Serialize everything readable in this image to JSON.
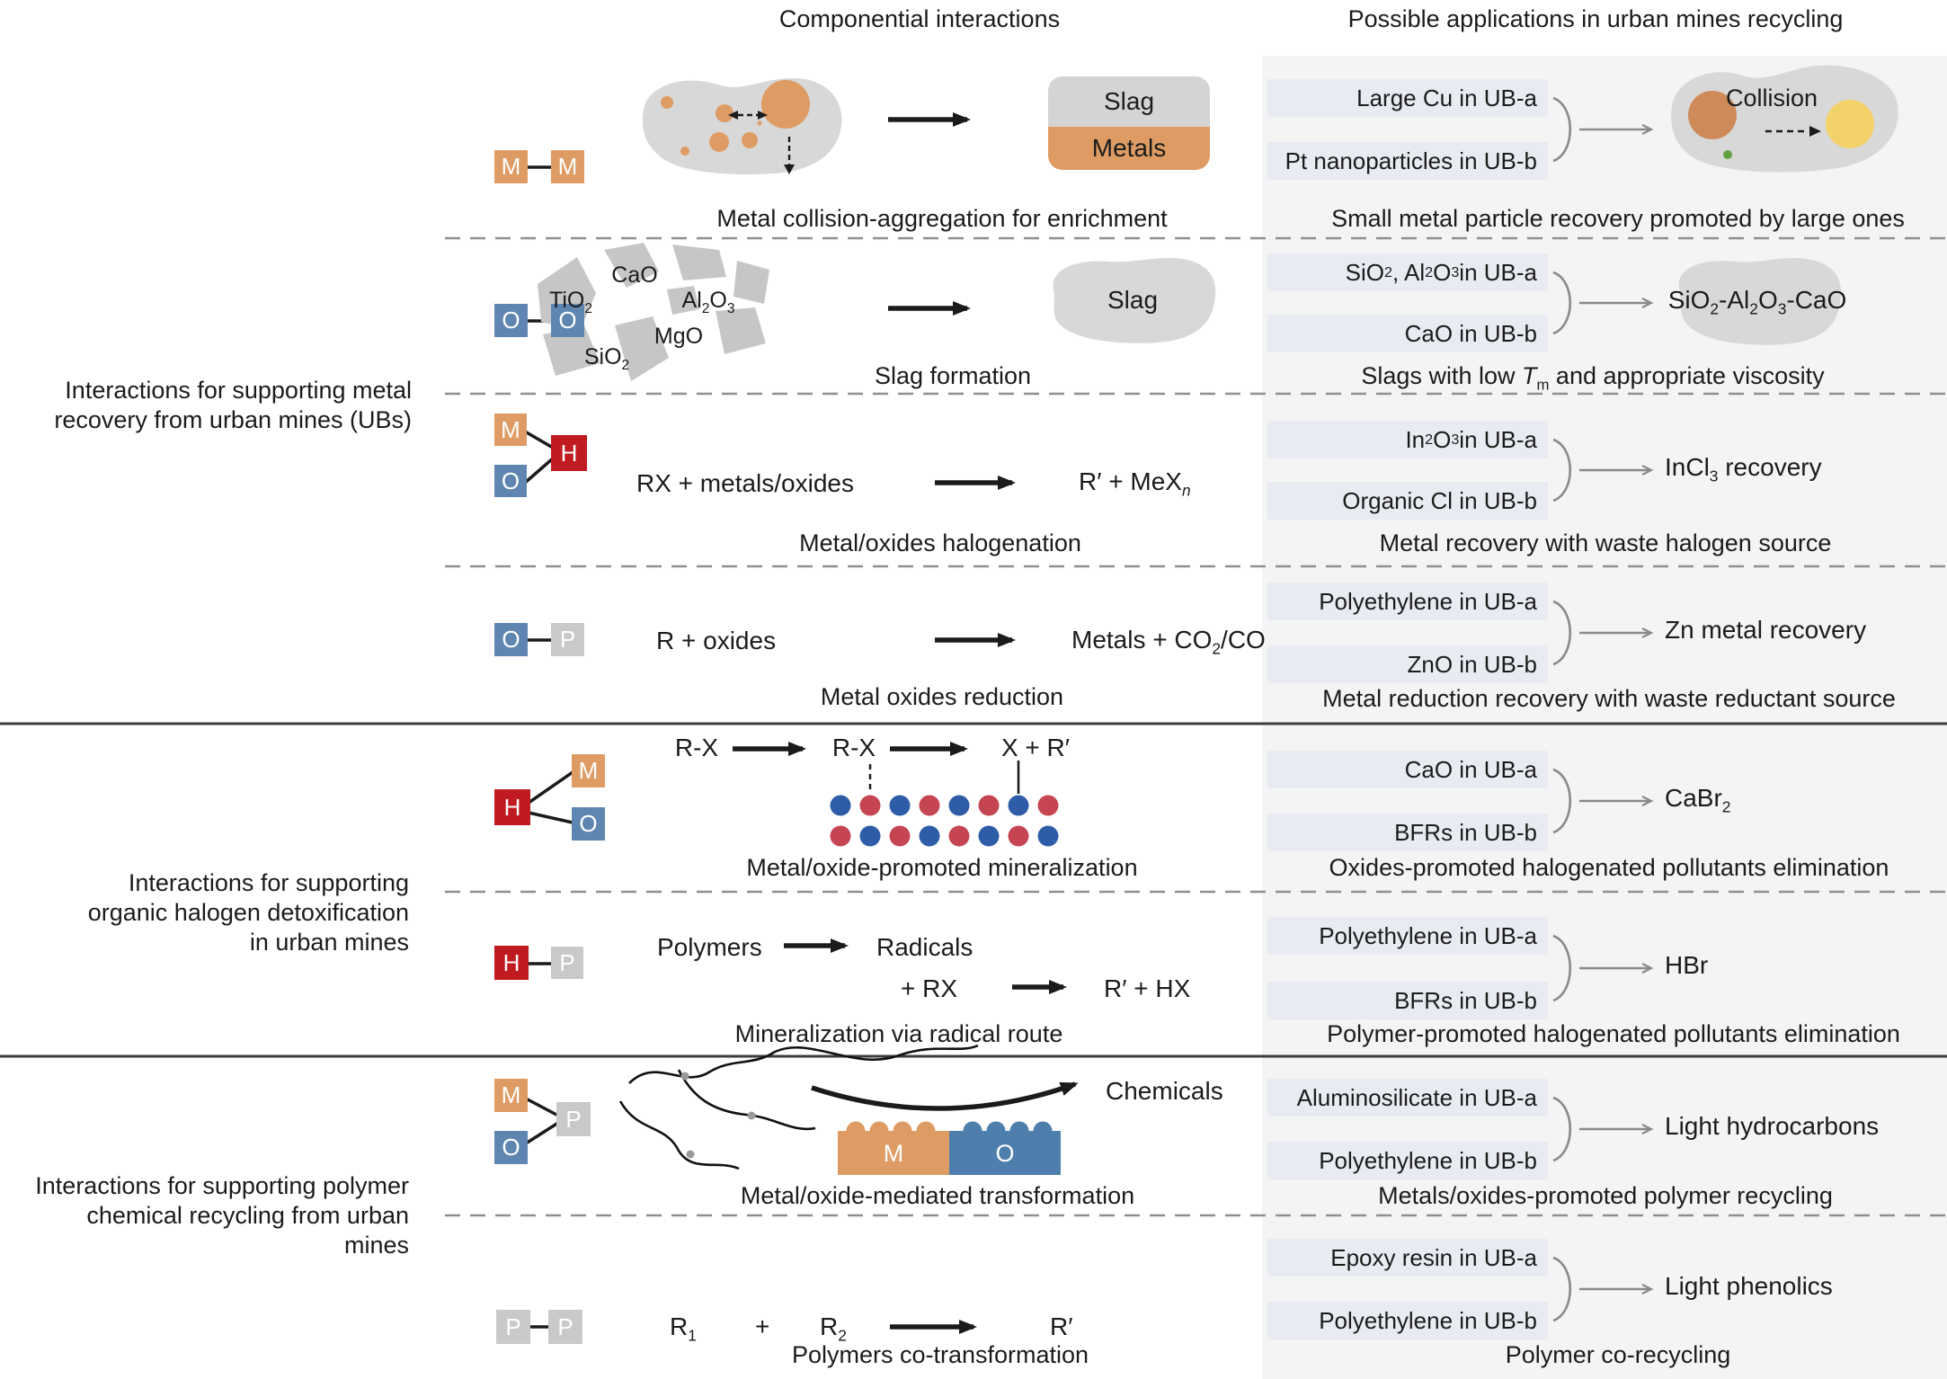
{
  "headers": {
    "componential": "Componential interactions",
    "applications": "Possible applications in urban mines recycling"
  },
  "sections": [
    {
      "lines": [
        "Interactions for supporting metal",
        "recovery from urban mines (UBs)"
      ]
    },
    {
      "lines": [
        "Interactions for supporting",
        "organic halogen detoxification",
        "in urban mines"
      ]
    },
    {
      "lines": [
        "Interactions for supporting polymer",
        "chemical recycling from urban",
        "mines"
      ]
    }
  ],
  "rows": [
    {
      "icon": [
        "M",
        "M"
      ],
      "diagram": {
        "slag": "Slag",
        "metals": "Metals"
      },
      "caption": "Metal collision-aggregation for enrichment",
      "app": {
        "a": "Large Cu in UB-a",
        "b": "Pt nanoparticles in UB-b",
        "result": "Collision",
        "caption": "Small metal particle recovery promoted by large ones"
      }
    },
    {
      "icon": [
        "O",
        "O"
      ],
      "diagram": {
        "oxides": [
          "CaO",
          "TiO_{2}",
          "Al_{2}O_{3}",
          "MgO",
          "SiO_{2}"
        ],
        "slag": "Slag"
      },
      "caption": "Slag formation",
      "app": {
        "a": "SiO_{2}, Al_{2}O_{3} in UB-a",
        "b": "CaO in UB-b",
        "result": "SiO_{2}-Al_{2}O_{3}-CaO",
        "caption": "Slags with low /T/_{m} and appropriate viscosity"
      }
    },
    {
      "icon": [
        "M",
        "O",
        "H"
      ],
      "eq_left": "RX + metals/oxides",
      "eq_right": "R′ + MeX_{/n/}",
      "caption": "Metal/oxides halogenation",
      "app": {
        "a": "In_{2}O_{3} in UB-a",
        "b": "Organic Cl in UB-b",
        "result": "InCl_{3} recovery",
        "caption": "Metal recovery with waste halogen source"
      }
    },
    {
      "icon": [
        "O",
        "P"
      ],
      "eq_left": "R + oxides",
      "eq_right": "Metals + CO_{2}/CO",
      "caption": "Metal oxides reduction",
      "app": {
        "a": "Polyethylene in UB-a",
        "b": "ZnO in UB-b",
        "result": "Zn metal recovery",
        "caption": "Metal reduction recovery with waste reductant source"
      }
    },
    {
      "icon": [
        "H",
        "M",
        "O"
      ],
      "eq": [
        "R-X",
        "R-X",
        "X + R′"
      ],
      "caption": "Metal/oxide-promoted mineralization",
      "app": {
        "a": "CaO in UB-a",
        "b": "BFRs in UB-b",
        "result": "CaBr_{2}",
        "caption": "Oxides-promoted halogenated pollutants elimination"
      }
    },
    {
      "icon": [
        "H",
        "P"
      ],
      "eq1_left": "Polymers",
      "eq1_right": "Radicals",
      "eq2_left": "+ RX",
      "eq2_right": "R′ + HX",
      "caption": "Mineralization via radical route",
      "app": {
        "a": "Polyethylene in UB-a",
        "b": "BFRs in UB-b",
        "result": "HBr",
        "caption": "Polymer-promoted halogenated pollutants elimination"
      }
    },
    {
      "icon": [
        "M",
        "O",
        "P"
      ],
      "chemicals": "Chemicals",
      "block": {
        "m": "M",
        "o": "O"
      },
      "caption": "Metal/oxide-mediated transformation",
      "app": {
        "a": "Aluminosilicate in UB-a",
        "b": "Polyethylene in UB-b",
        "result": "Light hydrocarbons",
        "caption": "Metals/oxides-promoted polymer recycling"
      }
    },
    {
      "icon": [
        "P",
        "P"
      ],
      "eq": [
        "R_{1}",
        "+",
        "R_{2}",
        "R′"
      ],
      "caption": "Polymers co-transformation",
      "app": {
        "a": "Epoxy resin in UB-a",
        "b": "Polyethylene in UB-b",
        "result": "Light phenolics",
        "caption": "Polymer co-recycling"
      }
    }
  ],
  "colors": {
    "metal_orange": "#DE9C64",
    "oxide_blue": "#5E86B0",
    "halogen_red": "#C01B20",
    "polymer_gray": "#C9C9C9",
    "blob_gray": "#D8D8D8",
    "panel_bg": "#F4F4F5",
    "item_box_bg": "#E8EBF2",
    "dot_blue": "#2E5CA6",
    "dot_red": "#C64552",
    "collision_yellow": "#F3D26A",
    "collision_green": "#63A23F",
    "gray_arrow": "#8A8A8A",
    "block_blue": "#4E7FAC"
  }
}
